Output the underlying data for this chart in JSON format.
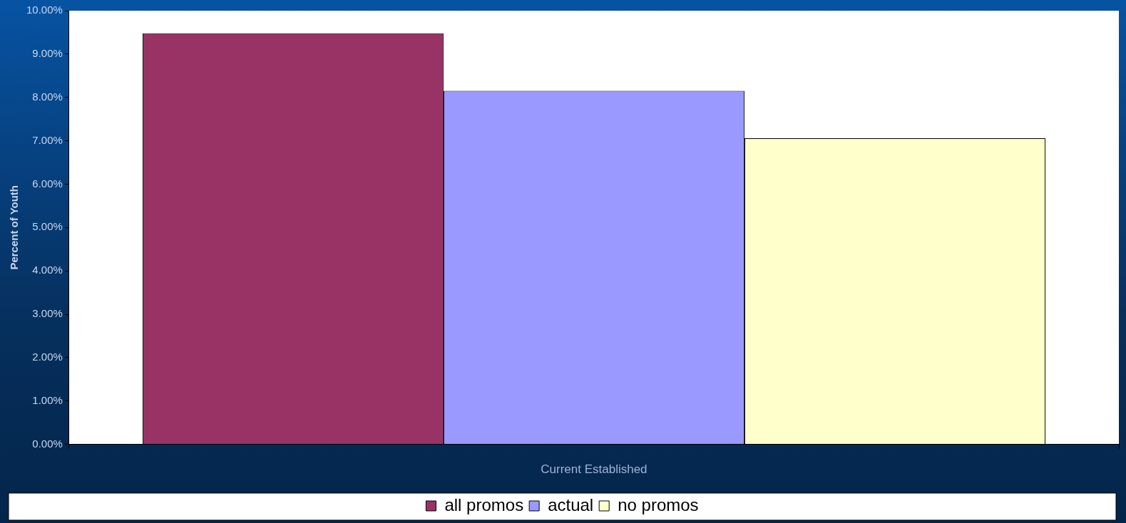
{
  "chart_data": {
    "type": "bar",
    "ylabel": "Percent of Youth",
    "categories": [
      "Current Established"
    ],
    "series": [
      {
        "name": "all promos",
        "color": "#993366",
        "values": [
          9.48
        ]
      },
      {
        "name": "actual",
        "color": "#9999ff",
        "values": [
          8.15
        ]
      },
      {
        "name": "no promos",
        "color": "#ffffcc",
        "values": [
          7.06
        ]
      }
    ],
    "ylim": [
      0,
      10
    ],
    "yticks": [
      {
        "value": 0,
        "label": "0.00%"
      },
      {
        "value": 1,
        "label": "1.00%"
      },
      {
        "value": 2,
        "label": "2.00%"
      },
      {
        "value": 3,
        "label": "3.00%"
      },
      {
        "value": 4,
        "label": "4.00%"
      },
      {
        "value": 5,
        "label": "5.00%"
      },
      {
        "value": 6,
        "label": "6.00%"
      },
      {
        "value": 7,
        "label": "7.00%"
      },
      {
        "value": 8,
        "label": "8.00%"
      },
      {
        "value": 9,
        "label": "9.00%"
      },
      {
        "value": 10,
        "label": "10.00%"
      }
    ],
    "grid": false,
    "legend": "bottom"
  }
}
